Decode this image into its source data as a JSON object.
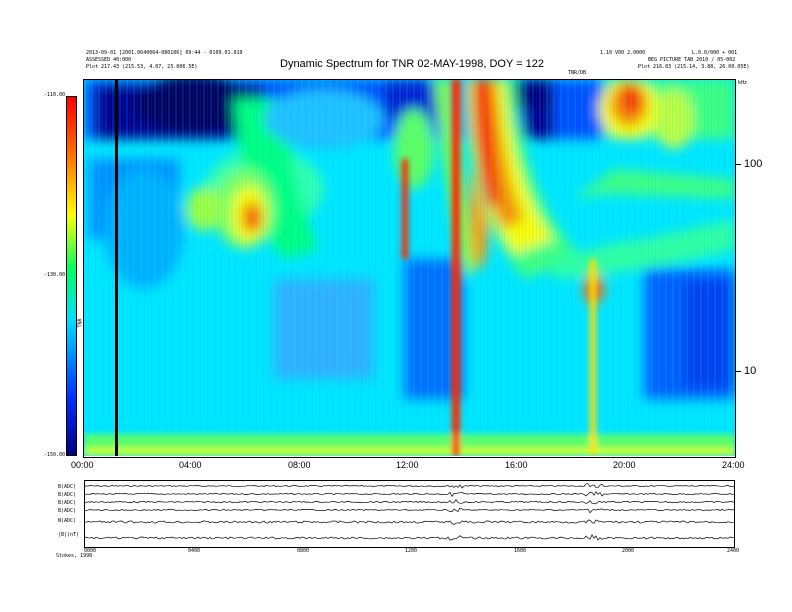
{
  "header": {
    "title": "Dynamic Spectrum for TNR 02-MAY-1998, DOY = 122",
    "left_line1": "2013-09-01 [2001.0640064-080106] 09:44 - 0109.01.010",
    "left_line2": "ASSESSED 40:000",
    "left_line3": "Plot 217.43 (215.53, 4.07, 23.806.5E)",
    "right_line1": "1.10 V00 2.0000",
    "right_line2": "L.0.0/000 + 001",
    "right_line3": "BEG PICTURE TAB 2010 / 05-002",
    "right_line4": "Plot 216.83 (215.14, 3.88, 26.00.05E)",
    "center_label": "TNR/DB",
    "unit_label": "kHz"
  },
  "colorbar": {
    "labels": [
      "-110.00",
      "-130.00",
      "-150.00"
    ],
    "axis_label": "TNR"
  },
  "spectrum": {
    "frequency_ticks": [
      "100",
      "10"
    ],
    "time_ticks": [
      "00:00",
      "04:00",
      "08:00",
      "12:00",
      "16:00",
      "20:00",
      "24:00"
    ]
  },
  "panels": {
    "labels": [
      "B(ADC)",
      "B(ADC)",
      "B(ADC)",
      "B(ADC)",
      "N(ADC)",
      "|B|(nT)"
    ],
    "time_ticks": [
      "0000",
      "0400",
      "0800",
      "1200",
      "1600",
      "2000",
      "2400"
    ],
    "footer_label": "Stokes, 1998"
  },
  "chart_data": {
    "type": "heatmap",
    "title": "Dynamic Spectrum for TNR 02-MAY-1998, DOY = 122",
    "x_range": [
      "00:00",
      "24:00"
    ],
    "x_ticks": [
      "00:00",
      "04:00",
      "08:00",
      "12:00",
      "16:00",
      "20:00",
      "24:00"
    ],
    "y_scale": "log",
    "y_unit": "kHz",
    "y_ticks": [
      100,
      10
    ],
    "color_range": [
      -150,
      -110
    ],
    "color_ticks": [
      -110,
      -130,
      -150
    ],
    "colormap": [
      "#000080",
      "#0030ff",
      "#00e0ff",
      "#00ff60",
      "#ffff00",
      "#ff8000",
      "#ff0000"
    ],
    "features": [
      {
        "type": "data-gap",
        "time": "01:10"
      },
      {
        "type": "burst",
        "time": "05:45",
        "freq_khz": 60,
        "level_db": -114
      },
      {
        "type": "burst",
        "time": "11:50",
        "freq_khz": 70,
        "level_db": -116
      },
      {
        "type": "vertical-band",
        "time": "13:40",
        "level_db": -114
      },
      {
        "type": "burst",
        "time": "14:30",
        "freq_khz": 80,
        "level_db": -113
      },
      {
        "type": "burst",
        "time": "18:40",
        "freq_khz": 27,
        "level_db": -116
      },
      {
        "type": "burst",
        "time": "20:00",
        "freq_khz": 200,
        "level_db": -115
      }
    ]
  }
}
